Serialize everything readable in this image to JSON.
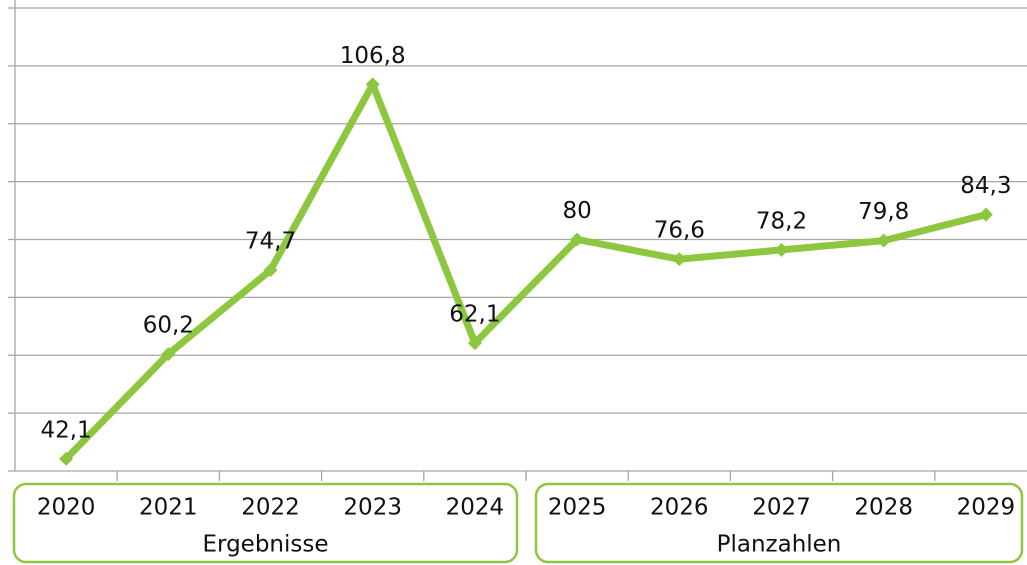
{
  "chart_data": {
    "type": "line",
    "categories": [
      "2020",
      "2021",
      "2022",
      "2023",
      "2024",
      "2025",
      "2026",
      "2027",
      "2028",
      "2029"
    ],
    "series": [
      {
        "color": "#8dc63f",
        "values": [
          42.1,
          60.2,
          74.7,
          106.8,
          62.1,
          80,
          76.6,
          78.2,
          79.8,
          84.3
        ],
        "value_labels": [
          "42,1",
          "60,2",
          "74,7",
          "106,8",
          "62,1",
          "80",
          "76,6",
          "78,2",
          "79,8",
          "84,3"
        ]
      }
    ],
    "ylim": [
      40,
      120
    ],
    "yticks": [
      40,
      50,
      60,
      70,
      80,
      90,
      100,
      110,
      120
    ],
    "grid": true,
    "groups": [
      {
        "name": "Ergebnisse",
        "start": "2020",
        "end": "2024"
      },
      {
        "name": "Planzahlen",
        "start": "2025",
        "end": "2029"
      }
    ]
  }
}
